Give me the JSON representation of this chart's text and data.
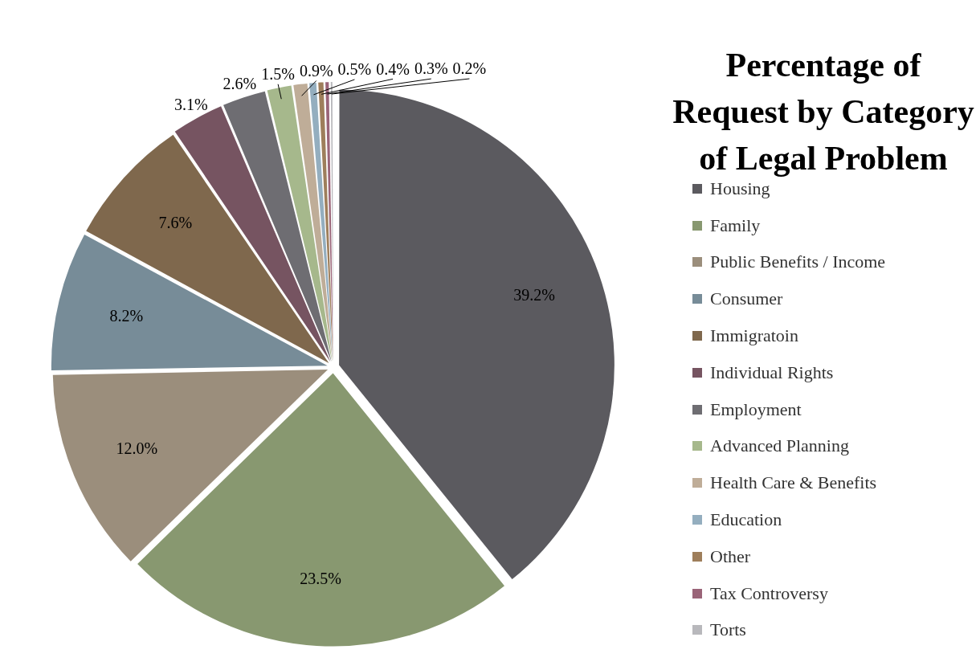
{
  "chart_data": {
    "type": "pie",
    "title": "Percentage of Request by Category of Legal Problem",
    "categories": [
      "Housing",
      "Family",
      "Public Benefits / Income",
      "Consumer",
      "Immigratoin",
      "Individual Rights",
      "Employment",
      "Advanced Planning",
      "Health Care & Benefits",
      "Education",
      "Other",
      "Tax Controversy",
      "Torts"
    ],
    "values": [
      39.2,
      23.5,
      12.0,
      8.2,
      7.6,
      3.1,
      2.6,
      1.5,
      0.9,
      0.5,
      0.4,
      0.3,
      0.2
    ],
    "value_labels": [
      "39.2%",
      "23.5%",
      "12.0%",
      "8.2%",
      "7.6%",
      "3.1%",
      "2.6%",
      "1.5%",
      "0.9%",
      "0.5%",
      "0.4%",
      "0.3%",
      "0.2%"
    ],
    "colors": [
      "#5b5a5f",
      "#889870",
      "#9b8e7c",
      "#778c98",
      "#7f684d",
      "#765461",
      "#6e6d72",
      "#a6b88c",
      "#bfad98",
      "#94aebf",
      "#9e7e5b",
      "#9a6478",
      "#b8b8bc"
    ],
    "legend": "right"
  }
}
